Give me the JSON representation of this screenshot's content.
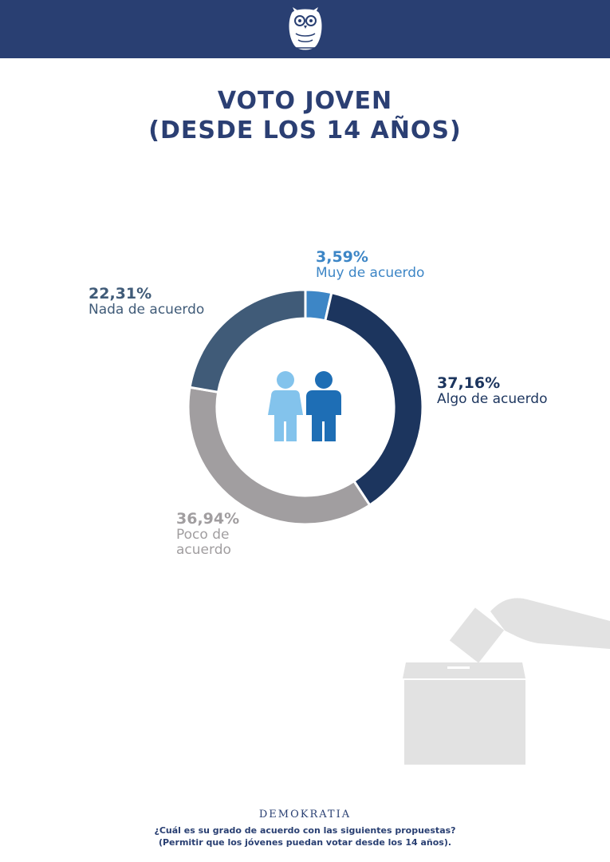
{
  "header": {
    "logo_icon": "owl-icon",
    "color": "#293f72"
  },
  "title": {
    "line1": "VOTO JOVEN",
    "line2": "(DESDE LOS 14 AÑOS)"
  },
  "chart_data": {
    "type": "pie",
    "style": "donut",
    "categories": [
      "Muy de acuerdo",
      "Algo de acuerdo",
      "Poco de acuerdo",
      "Nada de acuerdo"
    ],
    "values": [
      3.59,
      37.16,
      36.94,
      22.31
    ],
    "value_labels": [
      "3,59%",
      "37,16%",
      "36,94%",
      "22,31%"
    ],
    "colors": [
      "#3d86c6",
      "#1c355e",
      "#a19ea0",
      "#405b78"
    ],
    "center_icon": "people-icon"
  },
  "labels": {
    "muy": {
      "pct": "3,59%",
      "text": "Muy de acuerdo"
    },
    "algo": {
      "pct": "37,16%",
      "text": "Algo de acuerdo"
    },
    "poco": {
      "pct": "36,94%",
      "line1": "Poco de",
      "line2": "acuerdo"
    },
    "nada": {
      "pct": "22,31%",
      "text": "Nada de acuerdo"
    }
  },
  "footer": {
    "brand": "DEMOKRATIA",
    "question_line1": "¿Cuál es su grado de acuerdo con las siguientes propuestas?",
    "question_line2": "(Permitir que los jóvenes puedan votar desde los 14 años)."
  },
  "decor": {
    "ballot_icon": "ballot-box-icon"
  }
}
